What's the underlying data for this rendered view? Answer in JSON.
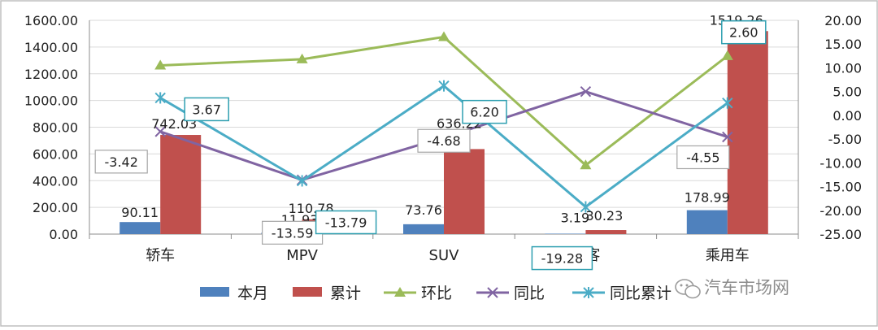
{
  "chart_data": {
    "type": "bar",
    "categories": [
      "轿车",
      "MPV",
      "SUV",
      "微客",
      "乘用车"
    ],
    "ylim_left": [
      0,
      1600
    ],
    "ylim_right": [
      -25,
      20
    ],
    "left_ticks": [
      "0.00",
      "200.00",
      "400.00",
      "600.00",
      "800.00",
      "1000.00",
      "1200.00",
      "1400.00",
      "1600.00"
    ],
    "right_ticks": [
      "-25.00",
      "-20.00",
      "-15.00",
      "-10.00",
      "-5.00",
      "0.00",
      "5.00",
      "10.00",
      "15.00",
      "20.00"
    ],
    "grid": "horizontal",
    "legend_position": "bottom",
    "series": [
      {
        "name": "本月",
        "type": "bar",
        "axis": "left",
        "color": "#4f81bd",
        "values": [
          90.11,
          11.93,
          73.76,
          3.19,
          178.99
        ],
        "labels": [
          "90.11",
          "11.93",
          "73.76",
          "3.19",
          "178.99"
        ]
      },
      {
        "name": "累计",
        "type": "bar",
        "axis": "left",
        "color": "#c0504d",
        "values": [
          742.03,
          110.78,
          636.22,
          30.23,
          1519.26
        ],
        "labels": [
          "742.03",
          "110.78",
          "636.22",
          "30.23",
          "1519.26"
        ]
      },
      {
        "name": "环比",
        "type": "line",
        "axis": "right",
        "color": "#9bbb59",
        "marker": "triangle",
        "values": [
          10.5,
          11.8,
          16.5,
          -10.5,
          12.5
        ]
      },
      {
        "name": "同比",
        "type": "line",
        "axis": "right",
        "color": "#8064a2",
        "marker": "x",
        "values": [
          -3.42,
          -13.59,
          -4.68,
          5.0,
          -4.55
        ],
        "labels": [
          "-3.42",
          "-13.59",
          "-4.68",
          "",
          "-4.55"
        ]
      },
      {
        "name": "同比累计",
        "type": "line",
        "axis": "right",
        "color": "#4bacc6",
        "marker": "star",
        "values": [
          3.67,
          -13.79,
          6.2,
          -19.28,
          2.6
        ],
        "labels": [
          "3.67",
          "-13.79",
          "6.20",
          "-19.28",
          "2.60"
        ]
      }
    ]
  },
  "watermark": {
    "text": "汽车市场网"
  }
}
